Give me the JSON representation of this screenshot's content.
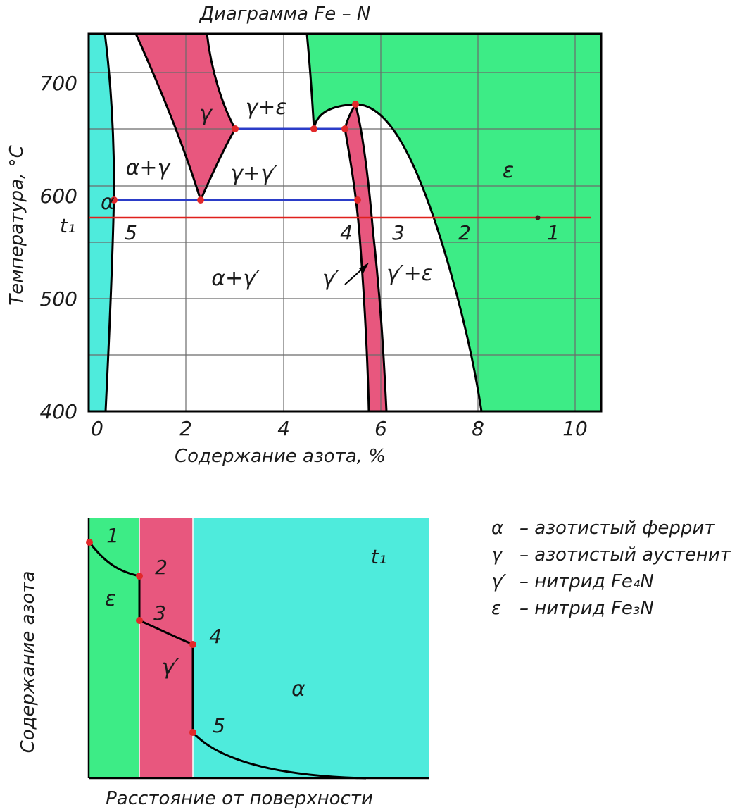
{
  "title": "Диаграмма Fe – N",
  "colors": {
    "cyan": "#4EEBDC",
    "green": "#3DEC86",
    "pink": "#E8577E",
    "blue_line": "#2B3CC8",
    "red_line": "#E0201C",
    "red_point": "#E2282A",
    "grid": "#6b6b6b",
    "stroke": "#000000"
  },
  "top_diagram": {
    "y_axis_label": "Температура, °С",
    "x_axis_label": "Содержание азота, %",
    "y_ticks": [
      "700",
      "600",
      "500",
      "400"
    ],
    "x_ticks": [
      "0",
      "2",
      "4",
      "6",
      "8",
      "10"
    ],
    "t1_label": "t₁",
    "regions": {
      "alpha": "α",
      "gamma": "γ",
      "gamma_eps": "γ+ε",
      "alpha_gamma": "α+γ",
      "gamma_gammaprime": "γ+γ′",
      "epsilon": "ε",
      "alpha_gammaprime": "α+γ′",
      "gammaprime": "γ′",
      "gammaprime_eps": "γ′+ε"
    },
    "points": [
      "5",
      "4",
      "3",
      "2",
      "1"
    ]
  },
  "bottom_diagram": {
    "y_axis_label": "Содержание азота",
    "x_axis_label": "Расстояние от поверхности",
    "t1_label": "t₁",
    "regions": {
      "epsilon": "ε",
      "gammaprime": "γ′",
      "alpha": "α"
    },
    "points": [
      "1",
      "2",
      "3",
      "4",
      "5"
    ]
  },
  "legend": [
    {
      "symbol": "α",
      "text": "– азотистый феррит"
    },
    {
      "symbol": "γ",
      "text": "– азотистый аустенит"
    },
    {
      "symbol": "γ′",
      "text": "– нитрид Fe₄N"
    },
    {
      "symbol": "ε",
      "text": "– нитрид Fe₃N"
    }
  ]
}
